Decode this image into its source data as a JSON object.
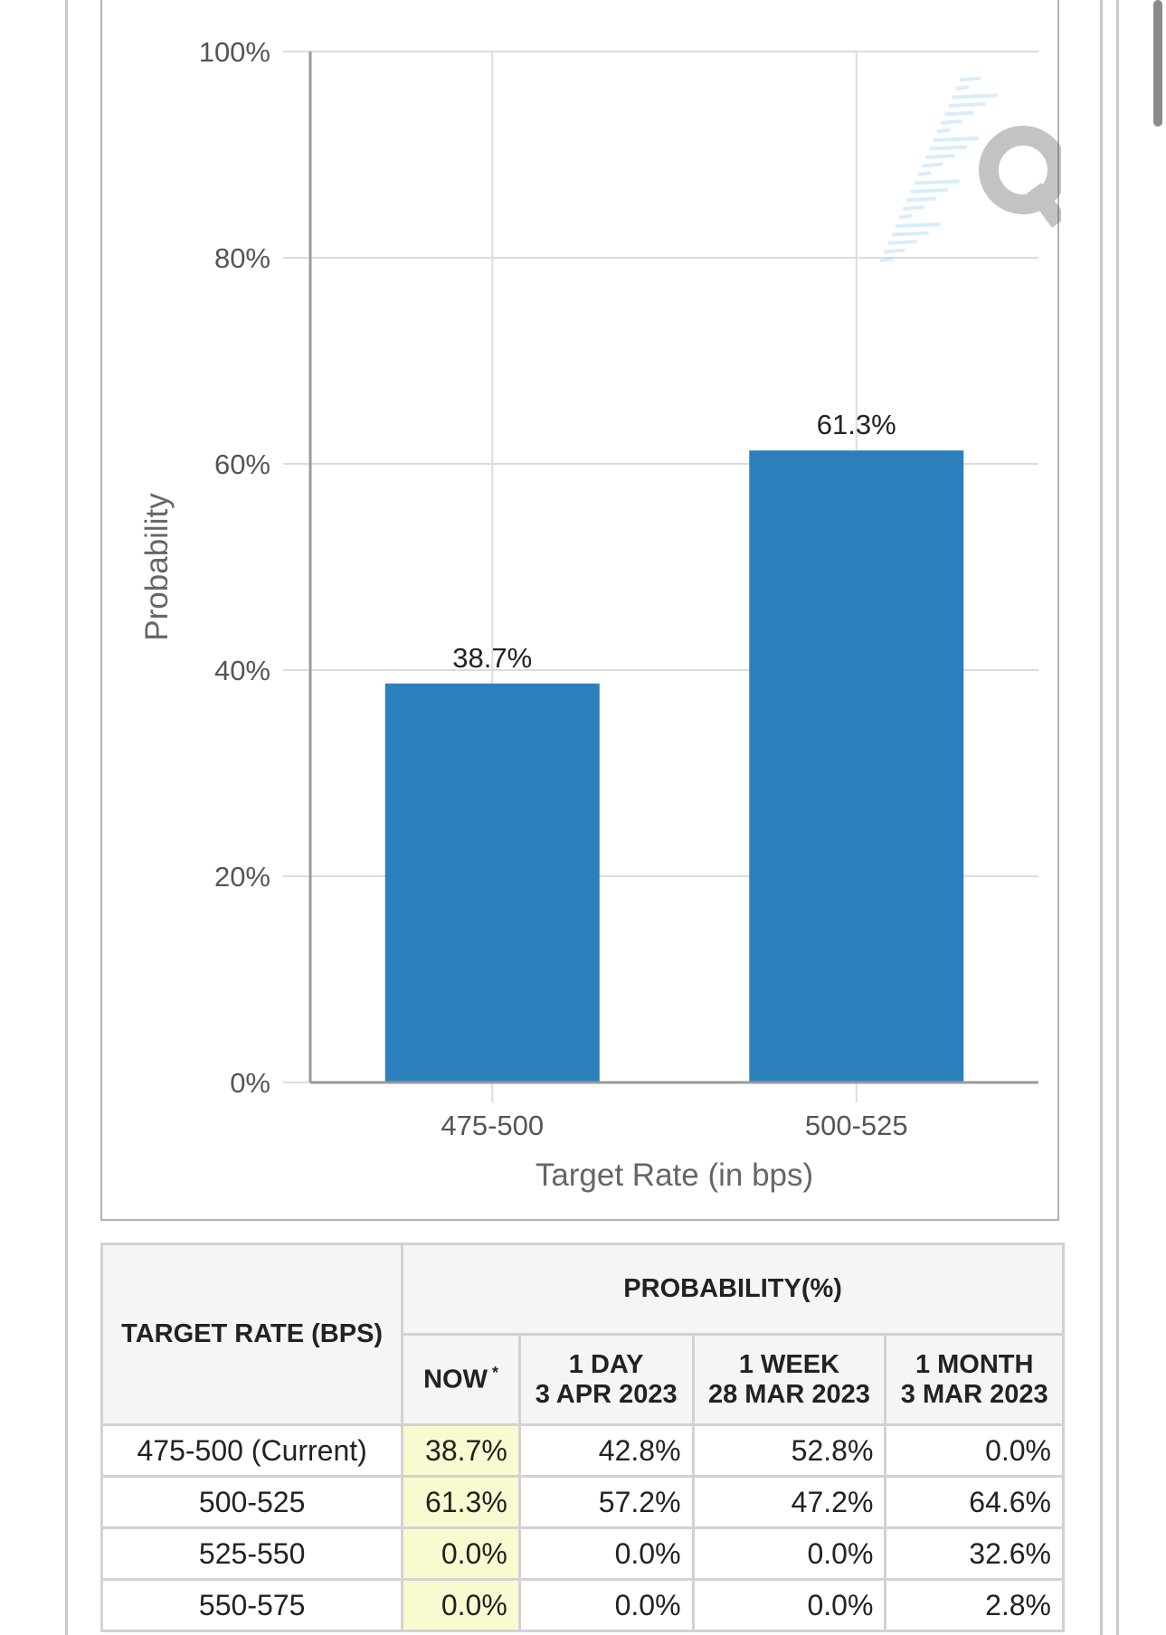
{
  "chart_data": {
    "type": "bar",
    "categories": [
      "475-500",
      "500-525"
    ],
    "values": [
      38.7,
      61.3
    ],
    "value_labels": [
      "38.7%",
      "61.3%"
    ],
    "ylim": [
      0,
      100
    ],
    "yticks": [
      "0%",
      "20%",
      "40%",
      "60%",
      "80%",
      "100%"
    ],
    "xlabel": "Target Rate (in bps)",
    "ylabel": "Probability",
    "grid": true,
    "bar_color": "#2b80bb"
  },
  "table": {
    "target_rate_header": "TARGET RATE (BPS)",
    "probability_header": "PROBABILITY(%)",
    "columns": [
      {
        "line1": "NOW",
        "line2": "",
        "mark": "*"
      },
      {
        "line1": "1 DAY",
        "line2": "3 APR 2023",
        "mark": ""
      },
      {
        "line1": "1 WEEK",
        "line2": "28 MAR 2023",
        "mark": ""
      },
      {
        "line1": "1 MONTH",
        "line2": "3 MAR 2023",
        "mark": ""
      }
    ],
    "rows": [
      {
        "rate": "475-500 (Current)",
        "values": [
          "38.7%",
          "42.8%",
          "52.8%",
          "0.0%"
        ]
      },
      {
        "rate": "500-525",
        "values": [
          "61.3%",
          "57.2%",
          "47.2%",
          "64.6%"
        ]
      },
      {
        "rate": "525-550",
        "values": [
          "0.0%",
          "0.0%",
          "0.0%",
          "32.6%"
        ]
      },
      {
        "rate": "550-575",
        "values": [
          "0.0%",
          "0.0%",
          "0.0%",
          "2.8%"
        ]
      }
    ]
  }
}
